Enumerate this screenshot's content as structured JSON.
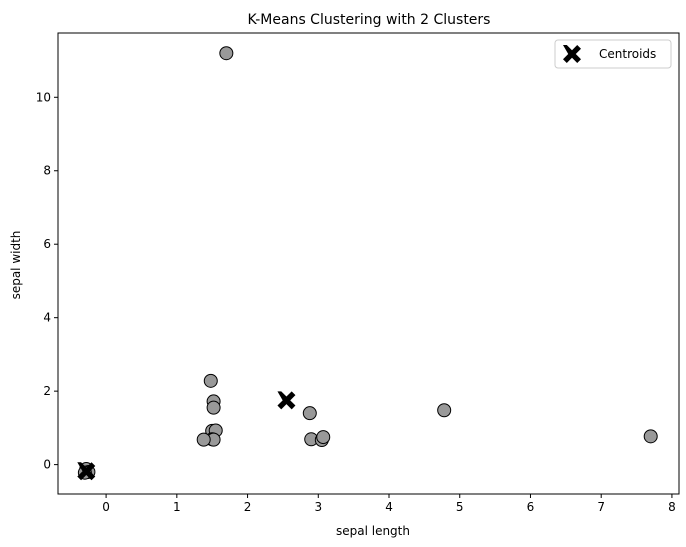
{
  "chart_data": {
    "type": "scatter",
    "title": "K-Means Clustering with 2 Clusters",
    "xlabel": "sepal length",
    "ylabel": "sepal width",
    "xlim": [
      -0.68,
      8.1
    ],
    "ylim": [
      -0.8,
      11.75
    ],
    "xticks": [
      0,
      1,
      2,
      3,
      4,
      5,
      6,
      7,
      8
    ],
    "yticks": [
      0,
      2,
      4,
      6,
      8,
      10
    ],
    "grid": false,
    "legend": {
      "position": "top-right",
      "entries": [
        "Centroids"
      ]
    },
    "series": [
      {
        "marker": "circle",
        "color": "#999999",
        "points": [
          {
            "x": 1.7,
            "y": 11.2
          },
          {
            "x": 1.48,
            "y": 2.28
          },
          {
            "x": 1.52,
            "y": 1.72
          },
          {
            "x": 1.52,
            "y": 1.55
          },
          {
            "x": 1.5,
            "y": 0.92
          },
          {
            "x": 1.55,
            "y": 0.93
          },
          {
            "x": 1.5,
            "y": 0.69
          },
          {
            "x": 1.52,
            "y": 0.68
          },
          {
            "x": 1.38,
            "y": 0.68
          },
          {
            "x": 2.88,
            "y": 1.4
          },
          {
            "x": 2.9,
            "y": 0.69
          },
          {
            "x": 3.05,
            "y": 0.67
          },
          {
            "x": 3.07,
            "y": 0.75
          },
          {
            "x": 4.78,
            "y": 1.48
          },
          {
            "x": 7.7,
            "y": 0.77
          },
          {
            "x": -0.28,
            "y": -0.12
          },
          {
            "x": -0.25,
            "y": -0.2
          },
          {
            "x": -0.3,
            "y": -0.22
          }
        ]
      },
      {
        "name": "Centroids",
        "marker": "X",
        "color": "#000000",
        "points": [
          {
            "x": 2.55,
            "y": 1.75
          },
          {
            "x": -0.28,
            "y": -0.18
          }
        ]
      }
    ]
  }
}
